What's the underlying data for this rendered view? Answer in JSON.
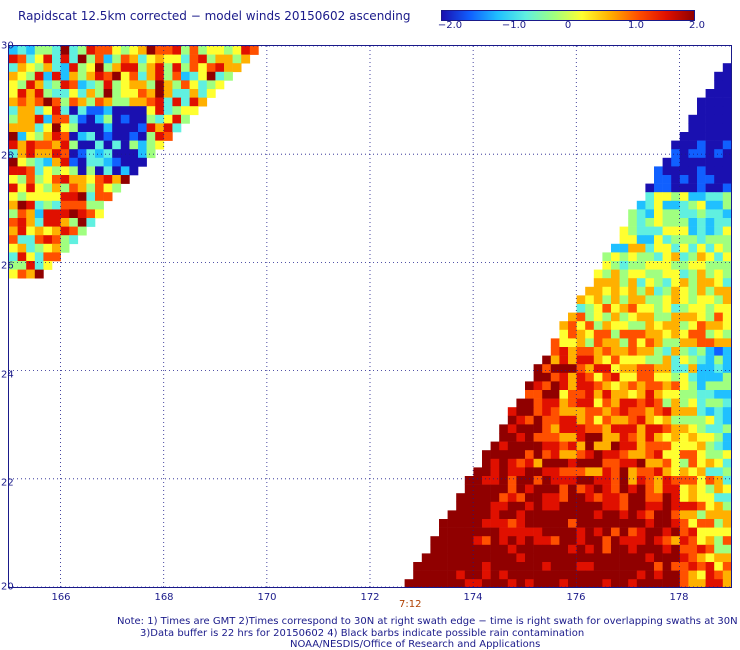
{
  "title": "Rapidscat 12.5km corrected − model winds 20150602 ascending",
  "colorbar": {
    "ticks": [
      "−2.0",
      "−1.0",
      "0",
      "1.0",
      "2.0"
    ],
    "colors": [
      "#1a10b0",
      "#1060ff",
      "#20c0ff",
      "#60f0e0",
      "#a0ff80",
      "#ffff30",
      "#ffb000",
      "#ff5000",
      "#e01000",
      "#900000"
    ]
  },
  "axes": {
    "lat_labels": [
      "30",
      "28",
      "26",
      "24",
      "22",
      "20"
    ],
    "lon_labels": [
      "166",
      "168",
      "170",
      "172",
      "174",
      "176",
      "178"
    ],
    "lat_range": [
      20,
      30
    ],
    "lon_range": [
      165,
      179
    ],
    "grid": true
  },
  "time_label": "7:12",
  "notes": [
    "Note: 1) Times are GMT 2)Times correspond to 30N at right swath edge − time is right swath for overlapping swaths at 30N",
    "3)Data buffer is 22 hrs for 20150602 4) Black barbs indicate possible rain contamination",
    "NOAA/NESDIS/Office of Research and Applications"
  ]
}
